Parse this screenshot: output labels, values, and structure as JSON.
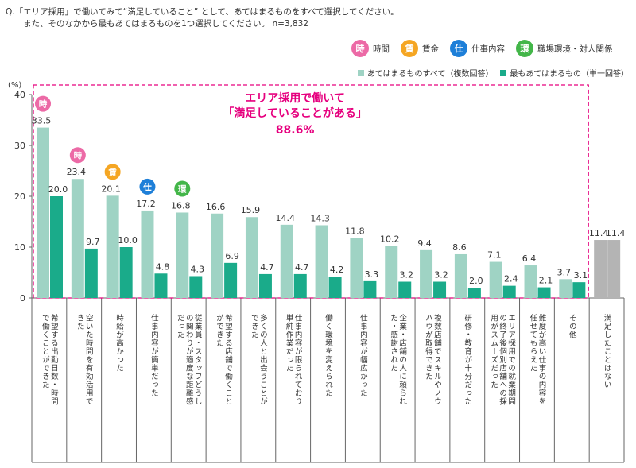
{
  "question": {
    "line1": "Q.「エリア採用」で働いてみて“満足していること” として、あてはまるものをすべて選択してください。",
    "line2": "また、そのなかから最もあてはまるものを1つ選択してください。  n=3,832"
  },
  "category_legend": [
    {
      "icon": "時",
      "label": "時間",
      "color": "#ec6aa6",
      "icon_name": "time-category-icon"
    },
    {
      "icon": "賃",
      "label": "賃金",
      "color": "#f5a623",
      "icon_name": "wage-category-icon"
    },
    {
      "icon": "仕",
      "label": "仕事内容",
      "color": "#1e7fd8",
      "icon_name": "job-content-category-icon"
    },
    {
      "icon": "環",
      "label": "職場環境・対人関係",
      "color": "#43b649",
      "icon_name": "environment-category-icon"
    }
  ],
  "series_legend": [
    {
      "label": "あてはまるものすべて（複数回答）",
      "color": "#9fd3c4"
    },
    {
      "label": "最もあてはまるもの（単一回答）",
      "color": "#1aab8a"
    }
  ],
  "highlight": {
    "line1": "エリア採用で働いて",
    "line2": "「満足していることがある」",
    "value": "88.6%",
    "color": "#e6007e"
  },
  "chart_data": {
    "type": "bar",
    "ylabel": "(%)",
    "ylim": [
      0,
      40
    ],
    "yticks": [
      0,
      10,
      20,
      30,
      40
    ],
    "grid": false,
    "legend_position": "top-right",
    "categories": [
      "希望する出勤日数・時間で働くことができた",
      "空いた時間を有効活用できた",
      "時給が高かった",
      "仕事内容が簡単だった",
      "従業員・スタッフどうしの関わりが適度な距離感だった",
      "希望する店舗で働くことができた",
      "多くの人と出会うことができた",
      "仕事内容が限られており単純作業だった",
      "働く環境を変えられた",
      "仕事内容が幅広かった",
      "企業・店舗の人に頼られた・感謝された",
      "複数店舗でスキルやノウハウが取得できた",
      "研修・教育が十分だった",
      "エリア採用での就業期間の終了後個別店舗への採用がスムーズだった",
      "難度が高い仕事の内容を任せてもらえた",
      "その他",
      "満足したことはない"
    ],
    "series": [
      {
        "name": "あてはまるものすべて（複数回答）",
        "values": [
          33.5,
          23.4,
          20.1,
          17.2,
          16.8,
          16.6,
          15.9,
          14.4,
          14.3,
          11.8,
          10.2,
          9.4,
          8.6,
          7.1,
          6.4,
          3.7,
          11.4
        ]
      },
      {
        "name": "最もあてはまるもの（単一回答）",
        "values": [
          20.0,
          9.7,
          10.0,
          4.8,
          4.3,
          6.9,
          4.7,
          4.7,
          4.2,
          3.3,
          3.2,
          3.2,
          2.0,
          2.4,
          2.1,
          3.1,
          11.4
        ]
      }
    ],
    "bar_badges": [
      {
        "category_index": 0,
        "icon": "時"
      },
      {
        "category_index": 1,
        "icon": "時"
      },
      {
        "category_index": 2,
        "icon": "賃"
      },
      {
        "category_index": 3,
        "icon": "仕"
      },
      {
        "category_index": 4,
        "icon": "環"
      }
    ],
    "colors": {
      "multi": "#9fd3c4",
      "single": "#1aab8a",
      "none": "#b4b4b4",
      "axis": "#666666",
      "highlight_border": "#e6007e"
    }
  }
}
